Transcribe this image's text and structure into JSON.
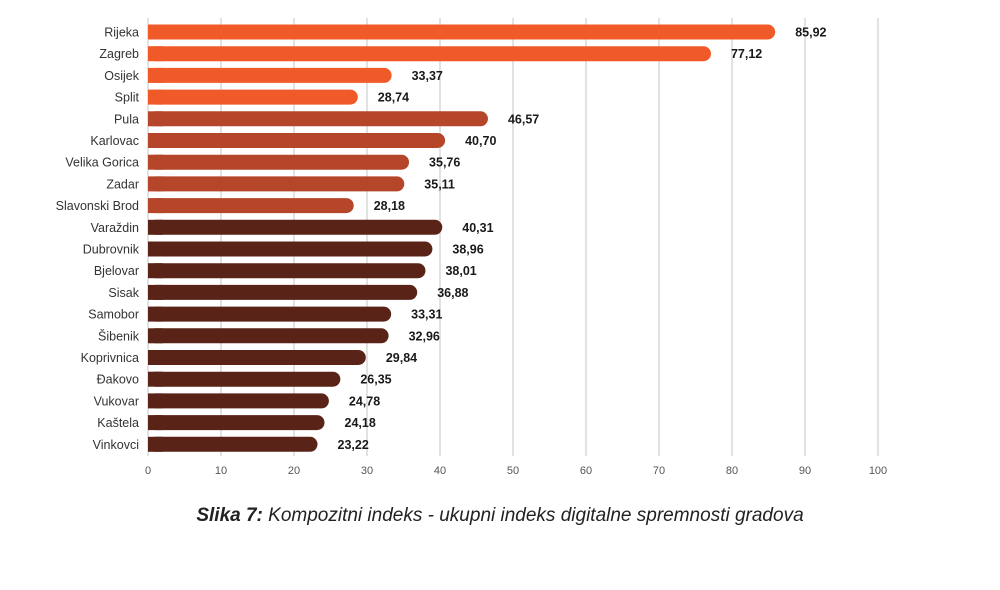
{
  "chart_data": {
    "type": "bar",
    "orientation": "horizontal",
    "categories": [
      "Rijeka",
      "Zagreb",
      "Osijek",
      "Split",
      "Pula",
      "Karlovac",
      "Velika Gorica",
      "Zadar",
      "Slavonski Brod",
      "Varaždin",
      "Dubrovnik",
      "Bjelovar",
      "Sisak",
      "Samobor",
      "Šibenik",
      "Koprivnica",
      "Đakovo",
      "Vukovar",
      "Kaštela",
      "Vinkovci"
    ],
    "values": [
      85.92,
      77.12,
      33.37,
      28.74,
      46.57,
      40.7,
      35.76,
      35.11,
      28.18,
      40.31,
      38.96,
      38.01,
      36.88,
      33.31,
      32.96,
      29.84,
      26.35,
      24.78,
      24.18,
      23.22
    ],
    "value_labels": [
      "85,92",
      "77,12",
      "33,37",
      "28,74",
      "46,57",
      "40,70",
      "35,76",
      "35,11",
      "28,18",
      "40,31",
      "38,96",
      "38,01",
      "36,88",
      "33,31",
      "32,96",
      "29,84",
      "26,35",
      "24,78",
      "24,18",
      "23,22"
    ],
    "group_colors": [
      "#f05a28",
      "#f05a28",
      "#f05a28",
      "#f05a28",
      "#b5462a",
      "#b5462a",
      "#b5462a",
      "#b5462a",
      "#b5462a",
      "#5a2318",
      "#5a2318",
      "#5a2318",
      "#5a2318",
      "#5a2318",
      "#5a2318",
      "#5a2318",
      "#5a2318",
      "#5a2318",
      "#5a2318",
      "#5a2318"
    ],
    "xlim": [
      0,
      100
    ],
    "xticks": [
      0,
      10,
      20,
      30,
      40,
      50,
      60,
      70,
      80,
      90,
      100
    ],
    "grid": true,
    "xlabel": "",
    "ylabel": ""
  },
  "caption": {
    "label": "Slika 7:",
    "text": " Kompozitni indeks - ukupni indeks digitalne spremnosti gradova"
  }
}
